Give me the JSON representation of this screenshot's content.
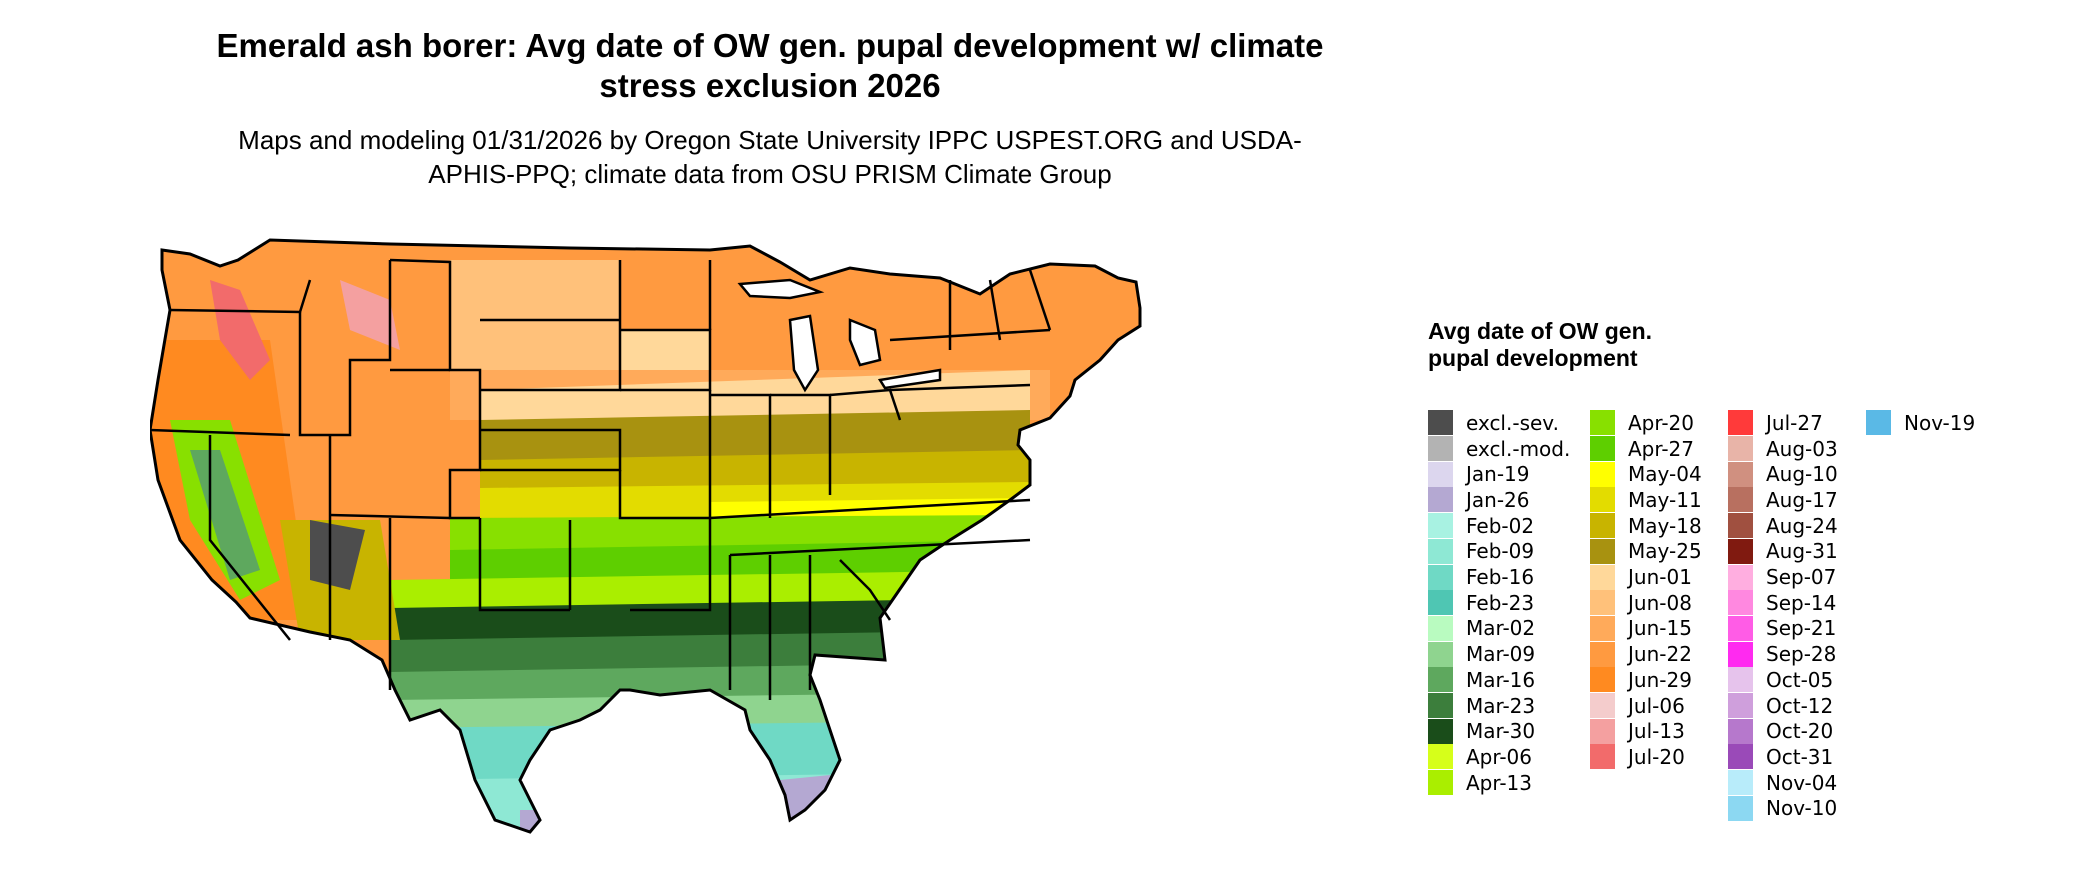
{
  "title": "Emerald ash borer: Avg date of OW gen. pupal development w/ climate stress exclusion 2026",
  "subtitle": "Maps and modeling 01/31/2026 by Oregon State University IPPC USPEST.ORG and USDA-APHIS-PPQ; climate data from OSU PRISM Climate Group",
  "legend": {
    "title": "Avg date of OW gen. pupal development",
    "items": [
      {
        "label": "excl.-sev.",
        "color": "#4d4d4d"
      },
      {
        "label": "excl.-mod.",
        "color": "#b3b3b3"
      },
      {
        "label": "Jan-19",
        "color": "#dcd6ee"
      },
      {
        "label": "Jan-26",
        "color": "#b4a8d2"
      },
      {
        "label": "Feb-02",
        "color": "#a8f2e2"
      },
      {
        "label": "Feb-09",
        "color": "#8ee8d4"
      },
      {
        "label": "Feb-16",
        "color": "#6fd9c5"
      },
      {
        "label": "Feb-23",
        "color": "#4fc6b3"
      },
      {
        "label": "Mar-02",
        "color": "#b9fbc0"
      },
      {
        "label": "Mar-09",
        "color": "#8fd48f"
      },
      {
        "label": "Mar-16",
        "color": "#5ea85e"
      },
      {
        "label": "Mar-23",
        "color": "#3c7e3c"
      },
      {
        "label": "Mar-30",
        "color": "#1a4d1a"
      },
      {
        "label": "Apr-06",
        "color": "#d6ff1a"
      },
      {
        "label": "Apr-13",
        "color": "#aaee00"
      },
      {
        "label": "Apr-20",
        "color": "#88e000"
      },
      {
        "label": "Apr-27",
        "color": "#5ecf00"
      },
      {
        "label": "May-04",
        "color": "#ffff00"
      },
      {
        "label": "May-11",
        "color": "#e3dc00"
      },
      {
        "label": "May-18",
        "color": "#c8b400"
      },
      {
        "label": "May-25",
        "color": "#a89210"
      },
      {
        "label": "Jun-01",
        "color": "#ffd89a"
      },
      {
        "label": "Jun-08",
        "color": "#ffc17a"
      },
      {
        "label": "Jun-15",
        "color": "#ffaa5a"
      },
      {
        "label": "Jun-22",
        "color": "#ff9a40"
      },
      {
        "label": "Jun-29",
        "color": "#ff8a20"
      },
      {
        "label": "Jul-06",
        "color": "#f4cccc"
      },
      {
        "label": "Jul-13",
        "color": "#f4a0a0"
      },
      {
        "label": "Jul-20",
        "color": "#f26b6b"
      },
      {
        "label": "Jul-27",
        "color": "#ff3a3a"
      },
      {
        "label": "Aug-03",
        "color": "#e8b4a8"
      },
      {
        "label": "Aug-10",
        "color": "#d09080"
      },
      {
        "label": "Aug-17",
        "color": "#b87060"
      },
      {
        "label": "Aug-24",
        "color": "#a05040"
      },
      {
        "label": "Aug-31",
        "color": "#801a10"
      },
      {
        "label": "Sep-07",
        "color": "#ffaee0"
      },
      {
        "label": "Sep-14",
        "color": "#ff88e0"
      },
      {
        "label": "Sep-21",
        "color": "#ff5ce6"
      },
      {
        "label": "Sep-28",
        "color": "#ff2af0"
      },
      {
        "label": "Oct-05",
        "color": "#e6c3ec"
      },
      {
        "label": "Oct-12",
        "color": "#cf9fdc"
      },
      {
        "label": "Oct-20",
        "color": "#b678cc"
      },
      {
        "label": "Oct-31",
        "color": "#9a4ab8"
      },
      {
        "label": "Nov-04",
        "color": "#b8ecfa"
      },
      {
        "label": "Nov-10",
        "color": "#8cd8f2"
      },
      {
        "label": "Nov-19",
        "color": "#5ab9e6"
      }
    ]
  }
}
